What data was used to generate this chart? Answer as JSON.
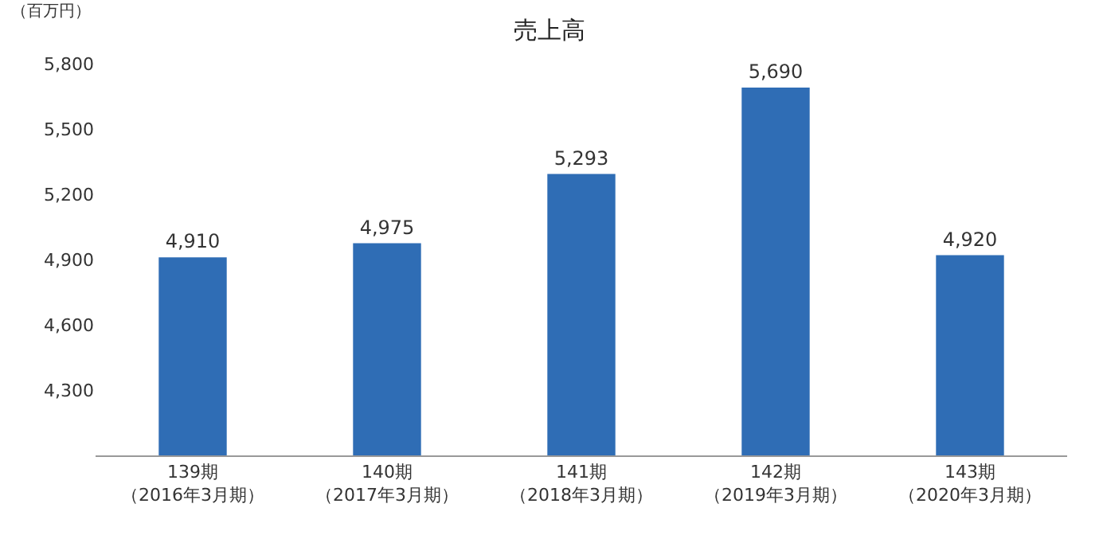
{
  "chart_data": {
    "type": "bar",
    "title": "売上高",
    "ylabel": "（百万円）",
    "categories": [
      "139期（2016年3月期）",
      "140期（2017年3月期）",
      "141期（2018年3月期）",
      "142期（2019年3月期）",
      "143期（2020年3月期）"
    ],
    "values": [
      4910,
      4975,
      5293,
      5690,
      4920
    ],
    "value_labels": [
      "4,910",
      "4,975",
      "5,293",
      "5,690",
      "4,920"
    ],
    "color": "#2f6db5",
    "ylim": [
      4000,
      5800
    ],
    "yticks": [
      {
        "value": 4000,
        "label": null
      },
      {
        "value": 4300,
        "label": "4,300"
      },
      {
        "value": 4600,
        "label": "4,600"
      },
      {
        "value": 4900,
        "label": "4,900"
      },
      {
        "value": 5200,
        "label": "5,200"
      },
      {
        "value": 5500,
        "label": "5,500"
      },
      {
        "value": 5800,
        "label": "5,800"
      }
    ],
    "legend": false
  }
}
